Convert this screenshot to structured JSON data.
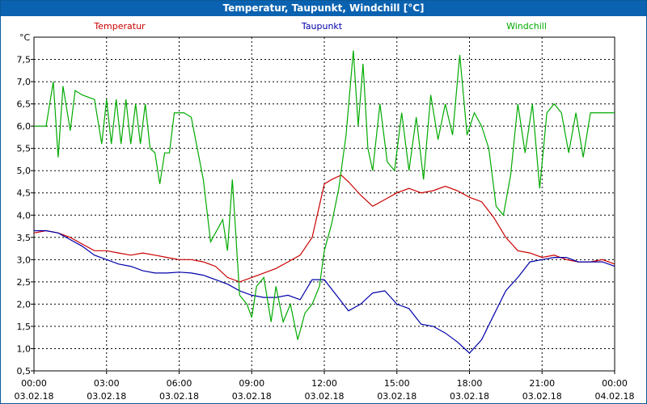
{
  "window": {
    "title": "Temperatur, Taupunkt, Windchill [°C]"
  },
  "chart_data": {
    "type": "line",
    "title": "Temperatur, Taupunkt, Windchill [°C]",
    "ylabel": "°C",
    "ylim": [
      0.5,
      8.0
    ],
    "yticks": [
      "0,5",
      "1,0",
      "1,5",
      "2,0",
      "2,5",
      "3,0",
      "3,5",
      "4,0",
      "4,5",
      "5,0",
      "5,5",
      "6,0",
      "6,5",
      "7,0",
      "7,5"
    ],
    "xticks": [
      {
        "time": "00:00",
        "date": "03.02.18"
      },
      {
        "time": "03:00",
        "date": "03.02.18"
      },
      {
        "time": "06:00",
        "date": "03.02.18"
      },
      {
        "time": "09:00",
        "date": "03.02.18"
      },
      {
        "time": "12:00",
        "date": "03.02.18"
      },
      {
        "time": "15:00",
        "date": "03.02.18"
      },
      {
        "time": "18:00",
        "date": "03.02.18"
      },
      {
        "time": "21:00",
        "date": "03.02.18"
      },
      {
        "time": "00:00",
        "date": "04.02.18"
      }
    ],
    "xlim_hours": [
      0,
      24
    ],
    "grid": true,
    "legend_placement": "top",
    "series": [
      {
        "name": "Temperatur",
        "color": "#cc0000",
        "x": [
          0,
          0.5,
          1,
          1.5,
          2,
          2.5,
          3,
          3.5,
          4,
          4.5,
          5,
          5.5,
          6,
          6.5,
          7,
          7.5,
          8,
          8.5,
          9,
          9.5,
          10,
          10.5,
          11,
          11.5,
          12,
          12.3,
          12.7,
          13,
          13.5,
          14,
          14.5,
          15,
          15.5,
          16,
          16.5,
          17,
          17.5,
          18,
          18.5,
          19,
          19.5,
          20,
          20.5,
          21,
          21.5,
          22,
          22.5,
          23,
          23.5,
          24
        ],
        "values": [
          3.6,
          3.65,
          3.6,
          3.5,
          3.35,
          3.2,
          3.2,
          3.15,
          3.1,
          3.15,
          3.1,
          3.05,
          3.0,
          3.0,
          2.95,
          2.85,
          2.6,
          2.5,
          2.6,
          2.7,
          2.8,
          2.95,
          3.1,
          3.5,
          4.7,
          4.8,
          4.9,
          4.75,
          4.45,
          4.2,
          4.35,
          4.5,
          4.6,
          4.5,
          4.55,
          4.65,
          4.55,
          4.4,
          4.3,
          3.95,
          3.5,
          3.2,
          3.15,
          3.05,
          3.1,
          3.0,
          2.95,
          2.95,
          3.0,
          2.9
        ]
      },
      {
        "name": "Taupunkt",
        "color": "#0000aa",
        "x": [
          0,
          0.5,
          1,
          1.5,
          2,
          2.5,
          3,
          3.5,
          4,
          4.5,
          5,
          5.5,
          6,
          6.5,
          7,
          7.5,
          8,
          8.5,
          9,
          9.5,
          10,
          10.5,
          11,
          11.5,
          12,
          12.5,
          13,
          13.5,
          14,
          14.5,
          15,
          15.5,
          16,
          16.5,
          17,
          17.5,
          18,
          18.5,
          19,
          19.5,
          20,
          20.5,
          21,
          21.5,
          22,
          22.5,
          23,
          23.5,
          24
        ],
        "values": [
          3.65,
          3.65,
          3.6,
          3.45,
          3.3,
          3.1,
          3.0,
          2.9,
          2.85,
          2.75,
          2.7,
          2.7,
          2.72,
          2.7,
          2.65,
          2.55,
          2.45,
          2.3,
          2.2,
          2.15,
          2.15,
          2.2,
          2.1,
          2.55,
          2.55,
          2.2,
          1.85,
          2.0,
          2.25,
          2.3,
          2.0,
          1.9,
          1.55,
          1.5,
          1.35,
          1.15,
          0.9,
          1.2,
          1.75,
          2.3,
          2.6,
          2.95,
          3.0,
          3.05,
          3.05,
          2.95,
          2.95,
          2.95,
          2.85
        ]
      },
      {
        "name": "Windchill",
        "color": "#00aa00",
        "x": [
          0,
          0.5,
          0.8,
          1.0,
          1.2,
          1.5,
          1.7,
          2.0,
          2.5,
          2.8,
          3.0,
          3.2,
          3.4,
          3.6,
          3.8,
          4.0,
          4.2,
          4.4,
          4.6,
          4.8,
          5.0,
          5.2,
          5.4,
          5.6,
          5.8,
          6.0,
          6.2,
          6.5,
          7.0,
          7.3,
          7.8,
          8.0,
          8.2,
          8.5,
          8.8,
          9.0,
          9.2,
          9.5,
          9.8,
          10.0,
          10.3,
          10.6,
          10.9,
          11.2,
          11.5,
          11.8,
          12.0,
          12.3,
          12.6,
          12.9,
          13.2,
          13.4,
          13.6,
          13.8,
          14.0,
          14.3,
          14.6,
          14.9,
          15.2,
          15.5,
          15.8,
          16.1,
          16.4,
          16.7,
          17.0,
          17.3,
          17.6,
          17.9,
          18.2,
          18.5,
          18.8,
          19.1,
          19.4,
          19.7,
          20.0,
          20.3,
          20.6,
          20.9,
          21.2,
          21.5,
          21.8,
          22.1,
          22.4,
          22.7,
          23.0,
          23.3,
          23.6,
          24
        ],
        "values": [
          6.0,
          6.0,
          7.0,
          5.3,
          6.9,
          5.9,
          6.8,
          6.7,
          6.6,
          5.6,
          6.6,
          5.6,
          6.6,
          5.6,
          6.6,
          5.6,
          6.5,
          5.6,
          6.5,
          5.5,
          5.4,
          4.7,
          5.4,
          5.4,
          6.3,
          6.3,
          6.3,
          6.2,
          4.8,
          3.4,
          3.9,
          3.2,
          4.8,
          2.2,
          2.0,
          1.7,
          2.4,
          2.6,
          1.6,
          2.4,
          1.6,
          2.0,
          1.2,
          1.8,
          2.0,
          2.4,
          3.2,
          3.8,
          4.6,
          5.8,
          7.7,
          6.0,
          7.4,
          5.5,
          5.0,
          6.5,
          5.2,
          5.0,
          6.3,
          5.0,
          6.2,
          4.8,
          6.7,
          5.7,
          6.5,
          5.8,
          7.6,
          5.8,
          6.3,
          6.0,
          5.5,
          4.2,
          4.0,
          4.9,
          6.5,
          5.4,
          6.5,
          4.6,
          6.3,
          6.5,
          6.3,
          5.4,
          6.3,
          5.3,
          6.3,
          6.3,
          6.3,
          6.3
        ]
      }
    ]
  }
}
